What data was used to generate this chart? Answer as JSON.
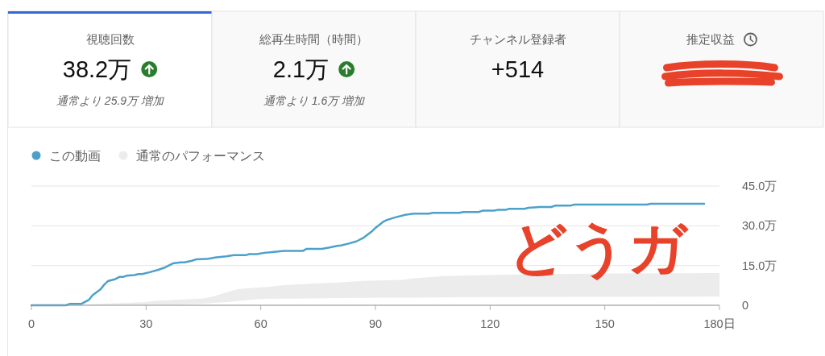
{
  "chart_data": [
    {
      "type": "other",
      "categories": [
        "視聴回数",
        "総再生時間（時間）",
        "チャンネル登録者",
        "推定収益"
      ],
      "value_labels": [
        "38.2万",
        "2.1万",
        "+514",
        null
      ],
      "annotations": [
        "通常より 25.9万 増加",
        "通常より 1.6万 増加"
      ]
    },
    {
      "type": "line",
      "legend": "top left",
      "grid": "y",
      "xlim": [
        0,
        180
      ],
      "xticks": [
        0,
        30,
        60,
        90,
        120,
        150,
        {
          "value": 180,
          "label": "180日"
        }
      ],
      "ylim": [
        0,
        45
      ],
      "yticks": [
        0,
        {
          "value": 15,
          "label": "15.0万"
        },
        {
          "value": 30,
          "label": "30.0万"
        },
        {
          "value": 45,
          "label": "45.0万"
        }
      ],
      "series": [
        {
          "name": "この動画",
          "color": "#4ca1c9",
          "x": [
            0,
            9,
            10,
            13,
            15,
            16,
            18,
            19,
            20,
            22,
            23,
            24,
            25,
            27,
            28,
            29,
            31,
            33,
            35,
            37,
            39,
            40,
            42,
            43,
            46,
            48,
            51,
            53,
            56,
            57,
            59,
            61,
            63,
            66,
            71,
            72,
            76,
            78,
            80,
            81,
            83,
            85,
            87,
            89,
            90,
            92,
            93,
            95,
            98,
            100,
            104,
            105,
            112,
            113,
            117,
            118,
            121,
            122,
            124,
            125,
            129,
            130,
            133,
            136,
            137,
            141,
            142,
            161,
            162,
            176
          ],
          "values": [
            0,
            0,
            0.5,
            0.5,
            2.0,
            3.8,
            5.9,
            7.7,
            9.1,
            9.9,
            10.7,
            10.7,
            11.2,
            11.4,
            11.8,
            11.8,
            12.5,
            13.3,
            14.3,
            15.8,
            16.2,
            16.2,
            16.8,
            17.3,
            17.5,
            18.0,
            18.5,
            18.9,
            18.9,
            19.3,
            19.3,
            19.8,
            20.1,
            20.5,
            20.5,
            21.3,
            21.3,
            21.8,
            22.4,
            22.6,
            23.3,
            24.1,
            25.6,
            27.8,
            29.2,
            31.5,
            32.2,
            33.1,
            34.2,
            34.6,
            34.6,
            34.9,
            34.9,
            35.2,
            35.2,
            35.7,
            35.7,
            36.0,
            36.0,
            36.4,
            36.4,
            36.8,
            37.1,
            37.1,
            37.6,
            37.6,
            38.0,
            38.0,
            38.3,
            38.3
          ]
        },
        {
          "name": "通常のパフォーマンス",
          "color": "#ececec",
          "x": [
            0,
            13,
            30,
            32,
            45,
            48,
            51,
            54,
            59,
            62,
            66,
            73,
            80,
            87,
            97,
            100,
            108,
            122,
            151,
            180
          ],
          "values": [
            null,
            null,
            null,
            null,
            null,
            null,
            null,
            null,
            null,
            null,
            null,
            null,
            null,
            null,
            null,
            null,
            null,
            null,
            null,
            null
          ],
          "lower": [
            0,
            0,
            0,
            0,
            0.6,
            0.9,
            1.2,
            1.6,
            2.3,
            2.4,
            2.5,
            2.6,
            2.7,
            2.8,
            2.9,
            2.9,
            3.0,
            3.1,
            3.2,
            3.3
          ],
          "upper": [
            0,
            0.3,
            1.2,
            1.6,
            2.6,
            3.5,
            4.9,
            6.1,
            6.7,
            6.9,
            7.6,
            8.1,
            8.6,
            9.2,
            9.6,
            10.2,
            11.0,
            11.5,
            12.0,
            12.2
          ]
        }
      ],
      "annotations": [
        "どうガ"
      ]
    }
  ]
}
